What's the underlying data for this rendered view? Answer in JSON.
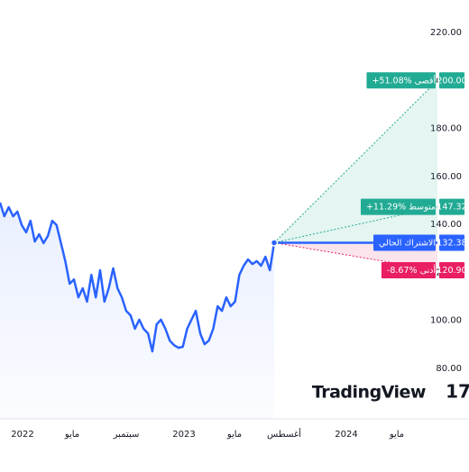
{
  "chart_data": {
    "type": "line",
    "x_labels": [
      "2022",
      "مايو",
      "سبتمبر",
      "2023",
      "مايو",
      "أغسطس",
      "2024",
      "مايو"
    ],
    "series": [
      {
        "color": "#2962ff",
        "values": [
          149.1,
          143.4,
          147.2,
          143.4,
          145.3,
          139.7,
          136.7,
          141.5,
          132.9,
          135.9,
          132.2,
          135.2,
          141.5,
          139.7,
          132.2,
          124.7,
          115.3,
          117.1,
          109.6,
          113.4,
          107.8,
          119,
          109.6,
          120.9,
          107.8,
          113.4,
          121.7,
          113.4,
          109.6,
          104,
          102.1,
          96.5,
          100.3,
          96.5,
          94.6,
          87.1,
          98.4,
          100.3,
          96.5,
          91.6,
          89.7,
          88.6,
          89,
          96.5,
          100.3,
          104,
          94.6,
          90.1,
          91.6,
          96.5,
          105.9,
          104,
          109.6,
          105.9,
          107.8,
          119,
          122.8,
          125.4,
          123.5,
          124.7,
          122.8,
          126.5,
          120.9,
          132.38
        ]
      }
    ],
    "current": {
      "label": "الاشتراك الحالي",
      "value": 132.38,
      "value_label": "132.38",
      "color": "#2962ff"
    },
    "targets": [
      {
        "label": "+51.08% أقصى",
        "value": 200,
        "value_label": "200.00",
        "color": "#22ab94"
      },
      {
        "label": "+11.29% متوسط",
        "value": 147.32,
        "value_label": "147.32",
        "color": "#22ab94"
      },
      {
        "label": "-8.67% أدنى",
        "value": 120.9,
        "value_label": "120.90",
        "color": "#e91e63"
      }
    ],
    "ylim": [
      80,
      220
    ],
    "yticks": [
      {
        "value": 80,
        "label": "80.00"
      },
      {
        "value": 100,
        "label": "100.00"
      },
      {
        "value": 120,
        "label": "120.00"
      },
      {
        "value": 140,
        "label": "140.00"
      },
      {
        "value": 160,
        "label": "160.00"
      },
      {
        "value": 180,
        "label": "180.00"
      },
      {
        "value": 200,
        "label": "200.00"
      },
      {
        "value": 220,
        "label": "220.00"
      }
    ],
    "brand": "TradingView"
  }
}
